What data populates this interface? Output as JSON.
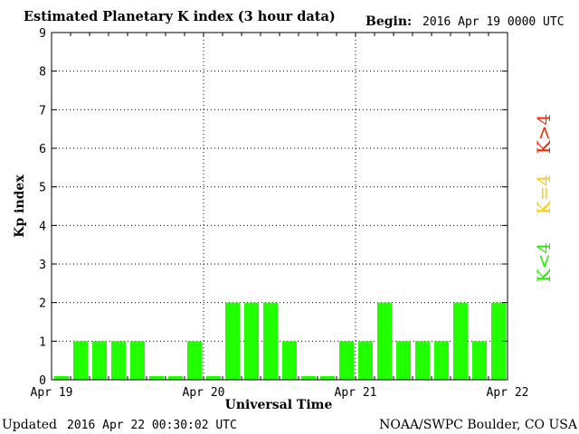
{
  "chart_data": {
    "type": "bar",
    "title": "Estimated Planetary K index (3 hour data)",
    "begin_label": "Begin:",
    "begin_value": "2016 Apr 19 0000 UTC",
    "ylabel": "Kp index",
    "xlabel": "Universal Time",
    "ylim": [
      0,
      9
    ],
    "yticks": [
      "0",
      "1",
      "2",
      "3",
      "4",
      "5",
      "6",
      "7",
      "8",
      "9"
    ],
    "xticks": [
      "Apr 19",
      "Apr 20",
      "Apr 21",
      "Apr 22"
    ],
    "values": [
      0,
      1,
      1,
      1,
      1,
      0,
      0,
      1,
      0,
      2,
      2,
      2,
      1,
      0,
      0,
      1,
      1,
      2,
      1,
      1,
      1,
      2,
      1,
      2
    ],
    "bar_color": "#22ff00",
    "grid": true,
    "legend": [
      {
        "label": "K<4",
        "color": "#22ee00"
      },
      {
        "label": "K=4",
        "color": "#ffcc00"
      },
      {
        "label": "K>4",
        "color": "#ff2200"
      }
    ],
    "legend_position": "right"
  },
  "footer": {
    "updated_label": "Updated",
    "updated_value": "2016 Apr 22 00:30:02 UTC",
    "credit": "NOAA/SWPC Boulder, CO USA"
  }
}
